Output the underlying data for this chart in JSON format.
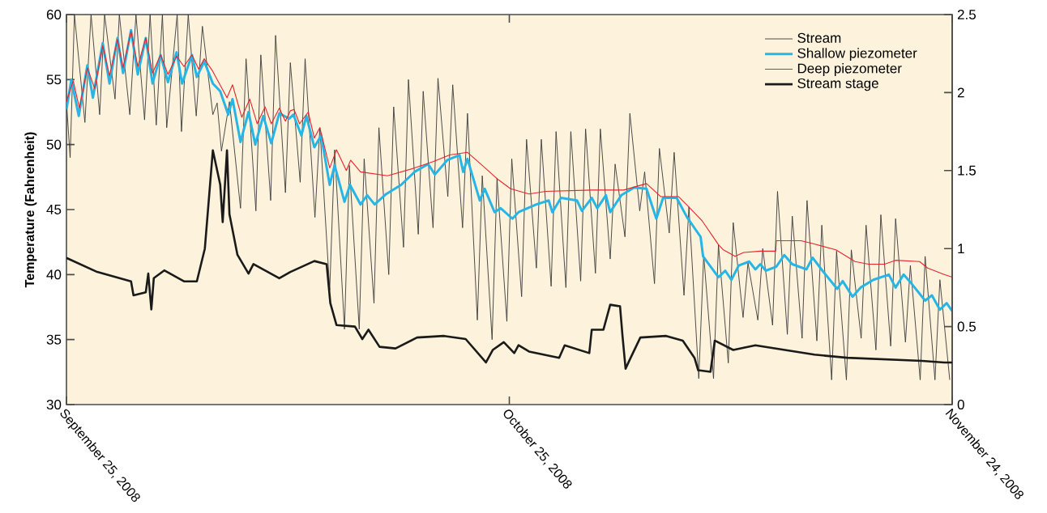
{
  "chart_data": {
    "type": "line",
    "ylabel": "Temperature (Fahrenheit)",
    "xlim": [
      "2008-09-25",
      "2008-11-24"
    ],
    "xticks": [
      {
        "value": "2008-09-25",
        "label": "September 25, 2008"
      },
      {
        "value": "2008-10-25",
        "label": "October 25, 2008"
      },
      {
        "value": "2008-11-24",
        "label": "November 24, 2008"
      }
    ],
    "ylim": [
      30,
      60
    ],
    "yticks": [
      30,
      35,
      40,
      45,
      50,
      55,
      60
    ],
    "y2lim": [
      0,
      2.5
    ],
    "y2ticks": [
      0,
      0.5,
      1,
      1.5,
      2,
      2.5
    ],
    "legend": "top right",
    "marker": "none",
    "line_style": "solid",
    "grid": false,
    "series": [
      {
        "name": "Stream",
        "color": "#3a3a3a",
        "x": [
          "2008-09-25T00:00",
          "2008-09-25T06:00",
          "2008-09-25T13:00",
          "2008-09-26T06:00",
          "2008-09-26T16:00",
          "2008-09-27T06:00",
          "2008-09-27T14:00",
          "2008-09-28T07:00",
          "2008-09-28T14:00",
          "2008-09-29T07:00",
          "2008-09-29T17:00",
          "2008-09-30T07:00",
          "2008-09-30T16:00",
          "2008-10-01T02:00",
          "2008-10-01T12:00",
          "2008-10-01T19:00",
          "2008-10-02T12:00",
          "2008-10-02T19:00",
          "2008-10-03T06:00",
          "2008-10-03T19:00",
          "2008-10-04T05:00",
          "2008-10-04T22:00",
          "2008-10-05T05:00",
          "2008-10-05T12:00",
          "2008-10-06T01:00",
          "2008-10-06T19:00",
          "2008-10-07T04:00",
          "2008-10-07T20:00",
          "2008-10-08T04:00",
          "2008-10-08T20:00",
          "2008-10-09T04:00",
          "2008-10-09T20:00",
          "2008-10-10T04:00",
          "2008-10-10T20:00",
          "2008-10-11T04:00",
          "2008-10-11T20:00",
          "2008-10-12T04:00",
          "2008-10-12T20:00",
          "2008-10-13T04:00",
          "2008-10-13T20:00",
          "2008-10-14T04:00",
          "2008-10-14T20:00",
          "2008-10-15T04:00",
          "2008-10-15T20:00",
          "2008-10-16T04:00",
          "2008-10-16T20:00",
          "2008-10-17T04:00",
          "2008-10-17T20:00",
          "2008-10-18T04:00",
          "2008-10-18T20:00",
          "2008-10-19T04:00",
          "2008-10-19T20:00",
          "2008-10-20T04:00",
          "2008-10-20T20:00",
          "2008-10-21T04:00",
          "2008-10-21T20:00",
          "2008-10-22T04:00",
          "2008-10-22T20:00",
          "2008-10-23T04:00",
          "2008-10-23T20:00",
          "2008-10-24T04:00",
          "2008-10-24T20:00",
          "2008-10-25T04:00",
          "2008-10-25T20:00",
          "2008-10-26T04:00",
          "2008-10-26T20:00",
          "2008-10-27T04:00",
          "2008-10-27T20:00",
          "2008-10-28T04:00",
          "2008-10-28T20:00",
          "2008-10-29T04:00",
          "2008-10-29T20:00",
          "2008-10-30T04:00",
          "2008-10-30T20:00",
          "2008-10-31T04:00",
          "2008-10-31T20:00",
          "2008-11-01T04:00",
          "2008-11-01T20:00",
          "2008-11-02T04:00",
          "2008-11-02T20:00",
          "2008-11-03T04:00",
          "2008-11-03T20:00",
          "2008-11-04T04:00",
          "2008-11-04T20:00",
          "2008-11-05T04:00",
          "2008-11-05T20:00",
          "2008-11-06T04:00",
          "2008-11-06T20:00",
          "2008-11-07T04:00",
          "2008-11-07T20:00",
          "2008-11-08T04:00",
          "2008-11-08T20:00",
          "2008-11-09T04:00",
          "2008-11-09T20:00",
          "2008-11-10T04:00",
          "2008-11-10T20:00",
          "2008-11-11T04:00",
          "2008-11-11T20:00",
          "2008-11-12T04:00",
          "2008-11-12T20:00",
          "2008-11-13T04:00",
          "2008-11-13T20:00",
          "2008-11-14T04:00",
          "2008-11-14T20:00",
          "2008-11-15T04:00",
          "2008-11-15T20:00",
          "2008-11-16T04:00",
          "2008-11-16T20:00",
          "2008-11-17T04:00",
          "2008-11-17T20:00",
          "2008-11-18T04:00",
          "2008-11-18T20:00",
          "2008-11-19T04:00",
          "2008-11-19T20:00",
          "2008-11-20T04:00",
          "2008-11-20T20:00",
          "2008-11-21T04:00",
          "2008-11-21T20:00",
          "2008-11-22T04:00",
          "2008-11-22T20:00",
          "2008-11-23T04:00",
          "2008-11-23T20:00"
        ],
        "values": [
          53.3,
          49.0,
          60,
          51.7,
          60,
          52.3,
          60,
          53.5,
          60,
          52.3,
          60,
          51.9,
          60,
          51.5,
          60,
          51.3,
          60,
          51.0,
          60,
          52.2,
          59.1,
          52.3,
          53.2,
          49.5,
          53.3,
          45.1,
          56.6,
          44.9,
          56.9,
          45.7,
          58.4,
          46.3,
          56.3,
          47.1,
          56.6,
          44.4,
          51.3,
          38.8,
          49.6,
          35.8,
          48.4,
          35.8,
          48.9,
          37.8,
          51.3,
          40.0,
          52.9,
          42.1,
          55.0,
          43.1,
          54.1,
          43.6,
          55.1,
          46.0,
          54.6,
          43.6,
          52.4,
          36.5,
          47.6,
          35.0,
          47.4,
          36.4,
          48.9,
          38.3,
          50.4,
          40.5,
          50.4,
          39.1,
          51.0,
          39.0,
          51.0,
          39.5,
          51.2,
          40.1,
          51.2,
          41.2,
          48.5,
          42.9,
          52.4,
          44.9,
          47.9,
          39.3,
          49.7,
          43.2,
          49.4,
          38.4,
          45.2,
          32.0,
          41.5,
          32.0,
          42.3,
          33.2,
          44.0,
          36.7,
          40.9,
          36.5,
          42.0,
          36.1,
          46.4,
          35.4,
          44.5,
          35.1,
          45.7,
          34.9,
          43.8,
          31.9,
          41.8,
          31.9,
          41.9,
          35.1,
          43.8,
          34.2,
          44.6,
          34.5,
          44.3,
          34.8,
          40.7,
          31.9,
          41.4,
          31.9,
          39.6,
          31.9
        ]
      },
      {
        "name": "Shallow piezometer",
        "color": "#27b5e6",
        "x": [
          "2008-09-25T00:00",
          "2008-09-25T08:00",
          "2008-09-25T20:00",
          "2008-09-26T10:00",
          "2008-09-26T19:00",
          "2008-09-27T11:00",
          "2008-09-27T22:00",
          "2008-09-28T11:00",
          "2008-09-28T20:00",
          "2008-09-29T09:00",
          "2008-09-29T20:00",
          "2008-09-30T09:00",
          "2008-09-30T20:00",
          "2008-10-01T09:00",
          "2008-10-01T21:00",
          "2008-10-02T11:00",
          "2008-10-02T20:00",
          "2008-10-03T12:00",
          "2008-10-03T20:00",
          "2008-10-04T08:00",
          "2008-10-04T22:00",
          "2008-10-05T10:00",
          "2008-10-05T23:00",
          "2008-10-06T06:00",
          "2008-10-06T19:00",
          "2008-10-07T08:00",
          "2008-10-07T19:00",
          "2008-10-08T08:00",
          "2008-10-08T21:00",
          "2008-10-09T10:00",
          "2008-10-10T02:00",
          "2008-10-10T09:00",
          "2008-10-10T22:00",
          "2008-10-11T06:00",
          "2008-10-11T19:00",
          "2008-10-12T06:00",
          "2008-10-12T20:00",
          "2008-10-13T04:00",
          "2008-10-13T20:00",
          "2008-10-14T05:00",
          "2008-10-14T22:00",
          "2008-10-15T09:00",
          "2008-10-15T21:00",
          "2008-10-16T16:00",
          "2008-10-17T16:00",
          "2008-10-18T14:00",
          "2008-10-19T12:00",
          "2008-10-19T23:00",
          "2008-10-20T19:00",
          "2008-10-21T15:00",
          "2008-10-21T21:00",
          "2008-10-22T04:00",
          "2008-10-23T00:00",
          "2008-10-23T08:00",
          "2008-10-24T00:00",
          "2008-10-24T10:00",
          "2008-10-25T05:00",
          "2008-10-25T15:00",
          "2008-10-26T20:00",
          "2008-10-27T16:00",
          "2008-10-27T22:00",
          "2008-10-28T12:00",
          "2008-10-29T14:00",
          "2008-10-29T22:00",
          "2008-10-30T14:00",
          "2008-10-30T23:00",
          "2008-10-31T13:00",
          "2008-10-31T20:00",
          "2008-11-01T14:00",
          "2008-11-02T11:00",
          "2008-11-03T07:00",
          "2008-11-03T23:00",
          "2008-11-04T10:00",
          "2008-11-05T08:00",
          "2008-11-06T01:00",
          "2008-11-06T23:00",
          "2008-11-07T03:00",
          "2008-11-08T04:00",
          "2008-11-08T15:00",
          "2008-11-09T01:00",
          "2008-11-09T13:00",
          "2008-11-10T06:00",
          "2008-11-10T16:00",
          "2008-11-11T00:00",
          "2008-11-11T09:00",
          "2008-11-12T02:00",
          "2008-11-12T15:00",
          "2008-11-13T04:00",
          "2008-11-14T03:00",
          "2008-11-14T13:00",
          "2008-11-15T05:00",
          "2008-11-16T05:00",
          "2008-11-16T14:00",
          "2008-11-17T06:00",
          "2008-11-17T19:00",
          "2008-11-18T16:00",
          "2008-11-19T17:00",
          "2008-11-20T04:00",
          "2008-11-20T17:00",
          "2008-11-21T06:00",
          "2008-11-22T04:00",
          "2008-11-22T15:00",
          "2008-11-23T04:00",
          "2008-11-23T15:00",
          "2008-11-24T00:00"
        ],
        "values": [
          52.7,
          55.0,
          52.2,
          56.1,
          53.6,
          57.8,
          54.7,
          58.2,
          55.5,
          58.8,
          55.4,
          58.2,
          54.7,
          56.9,
          54.8,
          57.1,
          54.7,
          56.9,
          55.2,
          56.4,
          54.7,
          54.1,
          52.3,
          53.5,
          50.2,
          52.5,
          50.0,
          52.2,
          50.1,
          52.4,
          52.0,
          52.3,
          50.7,
          52.2,
          49.8,
          50.7,
          46.9,
          48.4,
          45.6,
          46.9,
          45.4,
          46.1,
          45.4,
          46.2,
          46.9,
          47.9,
          48.5,
          47.7,
          48.8,
          49.2,
          47.9,
          48.9,
          45.7,
          46.6,
          44.8,
          45.1,
          44.3,
          44.8,
          45.4,
          45.7,
          44.8,
          45.9,
          45.7,
          44.9,
          45.9,
          45.1,
          46.1,
          44.8,
          46.1,
          46.7,
          46.6,
          44.3,
          45.9,
          45.9,
          44.4,
          42.9,
          41.4,
          39.8,
          40.3,
          39.6,
          40.7,
          41.0,
          40.4,
          40.8,
          40.3,
          40.6,
          41.5,
          40.8,
          40.4,
          41.3,
          40.3,
          38.9,
          39.5,
          38.3,
          39.0,
          39.6,
          40.0,
          39.0,
          40.0,
          39.3,
          38.0,
          38.4,
          37.3,
          37.8,
          37.2
        ]
      },
      {
        "name": "Deep piezometer",
        "color": "#e8232b",
        "x": [
          "2008-09-25T00:00",
          "2008-09-25T11:00",
          "2008-09-25T21:00",
          "2008-09-26T10:00",
          "2008-09-26T22:00",
          "2008-09-27T11:00",
          "2008-09-27T22:00",
          "2008-09-28T11:00",
          "2008-09-28T20:00",
          "2008-09-29T09:00",
          "2008-09-29T20:00",
          "2008-09-30T09:00",
          "2008-09-30T20:00",
          "2008-10-01T09:00",
          "2008-10-01T21:00",
          "2008-10-02T11:00",
          "2008-10-02T23:00",
          "2008-10-03T12:00",
          "2008-10-03T23:00",
          "2008-10-04T08:00",
          "2008-10-04T21:00",
          "2008-10-05T21:00",
          "2008-10-06T06:00",
          "2008-10-06T21:00",
          "2008-10-07T10:00",
          "2008-10-07T22:00",
          "2008-10-08T11:00",
          "2008-10-08T21:00",
          "2008-10-09T10:00",
          "2008-10-09T20:00",
          "2008-10-10T04:00",
          "2008-10-10T10:00",
          "2008-10-10T19:00",
          "2008-10-11T09:00",
          "2008-10-11T19:00",
          "2008-10-12T04:00",
          "2008-10-12T20:00",
          "2008-10-13T07:00",
          "2008-10-13T23:00",
          "2008-10-14T06:00",
          "2008-10-14T22:00",
          "2008-10-16T18:00",
          "2008-10-18T14:00",
          "2008-10-19T21:00",
          "2008-10-20T23:00",
          "2008-10-22T04:00",
          "2008-10-23T04:00",
          "2008-10-24T06:00",
          "2008-10-25T02:00",
          "2008-10-26T08:00",
          "2008-10-27T11:00",
          "2008-10-30T14:00",
          "2008-11-01T18:00",
          "2008-11-03T07:00",
          "2008-11-04T06:00",
          "2008-11-05T11:00",
          "2008-11-06T04:00",
          "2008-11-07T02:00",
          "2008-11-08T04:00",
          "2008-11-08T12:00",
          "2008-11-09T07:00",
          "2008-11-09T21:00",
          "2008-11-11T00:00",
          "2008-11-12T01:00",
          "2008-11-12T02:00",
          "2008-11-13T18:00",
          "2008-11-14T12:00",
          "2008-11-16T03:00",
          "2008-11-17T10:00",
          "2008-11-18T08:00",
          "2008-11-19T10:00",
          "2008-11-20T04:00",
          "2008-11-21T19:00",
          "2008-11-22T08:00",
          "2008-11-23T11:00",
          "2008-11-24T00:00"
        ],
        "values": [
          53.3,
          54.9,
          52.8,
          55.9,
          54.3,
          57.6,
          55.3,
          58.1,
          55.9,
          58.7,
          56.0,
          58.2,
          55.5,
          56.9,
          55.4,
          56.8,
          56.0,
          56.9,
          55.8,
          56.6,
          55.7,
          53.6,
          54.6,
          52.1,
          53.5,
          51.6,
          52.9,
          51.6,
          52.8,
          51.8,
          52.6,
          52.7,
          51.6,
          52.5,
          50.5,
          51.3,
          48.2,
          49.6,
          48.0,
          48.8,
          47.9,
          47.6,
          48.2,
          48.7,
          49.2,
          49.4,
          48.4,
          47.3,
          46.6,
          46.2,
          46.4,
          46.5,
          46.5,
          47.0,
          46.0,
          46.0,
          45.2,
          44.1,
          42.3,
          41.9,
          41.4,
          41.7,
          41.8,
          41.8,
          42.6,
          42.6,
          42.4,
          41.9,
          41.0,
          40.8,
          40.8,
          41.1,
          41.0,
          40.5,
          40.0,
          39.8
        ]
      },
      {
        "name": "Stream stage",
        "color": "#1a1a1a",
        "axis": "y2",
        "x": [
          "2008-09-25T00:00",
          "2008-09-27T02:00",
          "2008-09-29T09:00",
          "2008-09-29T13:00",
          "2008-09-30T09:00",
          "2008-09-30T13:00",
          "2008-09-30T18:00",
          "2008-09-30T22:00",
          "2008-10-01T15:00",
          "2008-10-02T23:00",
          "2008-10-03T20:00",
          "2008-10-04T09:00",
          "2008-10-04T22:00",
          "2008-10-05T10:00",
          "2008-10-05T14:00",
          "2008-10-05T21:00",
          "2008-10-06T01:00",
          "2008-10-06T14:00",
          "2008-10-07T08:00",
          "2008-10-07T16:00",
          "2008-10-09T10:00",
          "2008-10-10T04:00",
          "2008-10-11T19:00",
          "2008-10-12T15:00",
          "2008-10-12T21:00",
          "2008-10-13T07:00",
          "2008-10-14T13:00",
          "2008-10-15T01:00",
          "2008-10-15T11:00",
          "2008-10-16T05:00",
          "2008-10-17T07:00",
          "2008-10-18T18:00",
          "2008-10-20T14:00",
          "2008-10-22T01:00",
          "2008-10-23T10:00",
          "2008-10-23T21:00",
          "2008-10-24T15:00",
          "2008-10-25T08:00",
          "2008-10-25T15:00",
          "2008-10-26T08:00",
          "2008-10-28T09:00",
          "2008-10-28T18:00",
          "2008-10-30T10:00",
          "2008-10-30T14:00",
          "2008-10-31T09:00",
          "2008-10-31T20:00",
          "2008-11-01T12:00",
          "2008-11-01T16:00",
          "2008-11-01T21:00",
          "2008-11-02T04:00",
          "2008-11-02T21:00",
          "2008-11-04T15:00",
          "2008-11-05T18:00",
          "2008-11-06T13:00",
          "2008-11-06T19:00",
          "2008-11-07T15:00",
          "2008-11-07T22:00",
          "2008-11-09T04:00",
          "2008-11-10T16:00",
          "2008-11-14T16:00",
          "2008-11-16T21:00",
          "2008-11-21T23:00",
          "2008-11-23T11:00",
          "2008-11-24T00:00"
        ],
        "values": [
          0.94,
          0.85,
          0.79,
          0.7,
          0.72,
          0.84,
          0.61,
          0.81,
          0.86,
          0.79,
          0.79,
          1.0,
          1.63,
          1.41,
          1.17,
          1.63,
          1.22,
          0.96,
          0.84,
          0.9,
          0.81,
          0.85,
          0.92,
          0.9,
          0.65,
          0.51,
          0.5,
          0.42,
          0.48,
          0.37,
          0.36,
          0.43,
          0.44,
          0.42,
          0.27,
          0.35,
          0.4,
          0.33,
          0.38,
          0.34,
          0.3,
          0.38,
          0.33,
          0.48,
          0.48,
          0.64,
          0.63,
          0.44,
          0.23,
          0.29,
          0.43,
          0.44,
          0.41,
          0.3,
          0.22,
          0.21,
          0.41,
          0.35,
          0.38,
          0.32,
          0.3,
          0.28,
          0.27,
          0.27
        ]
      }
    ]
  }
}
